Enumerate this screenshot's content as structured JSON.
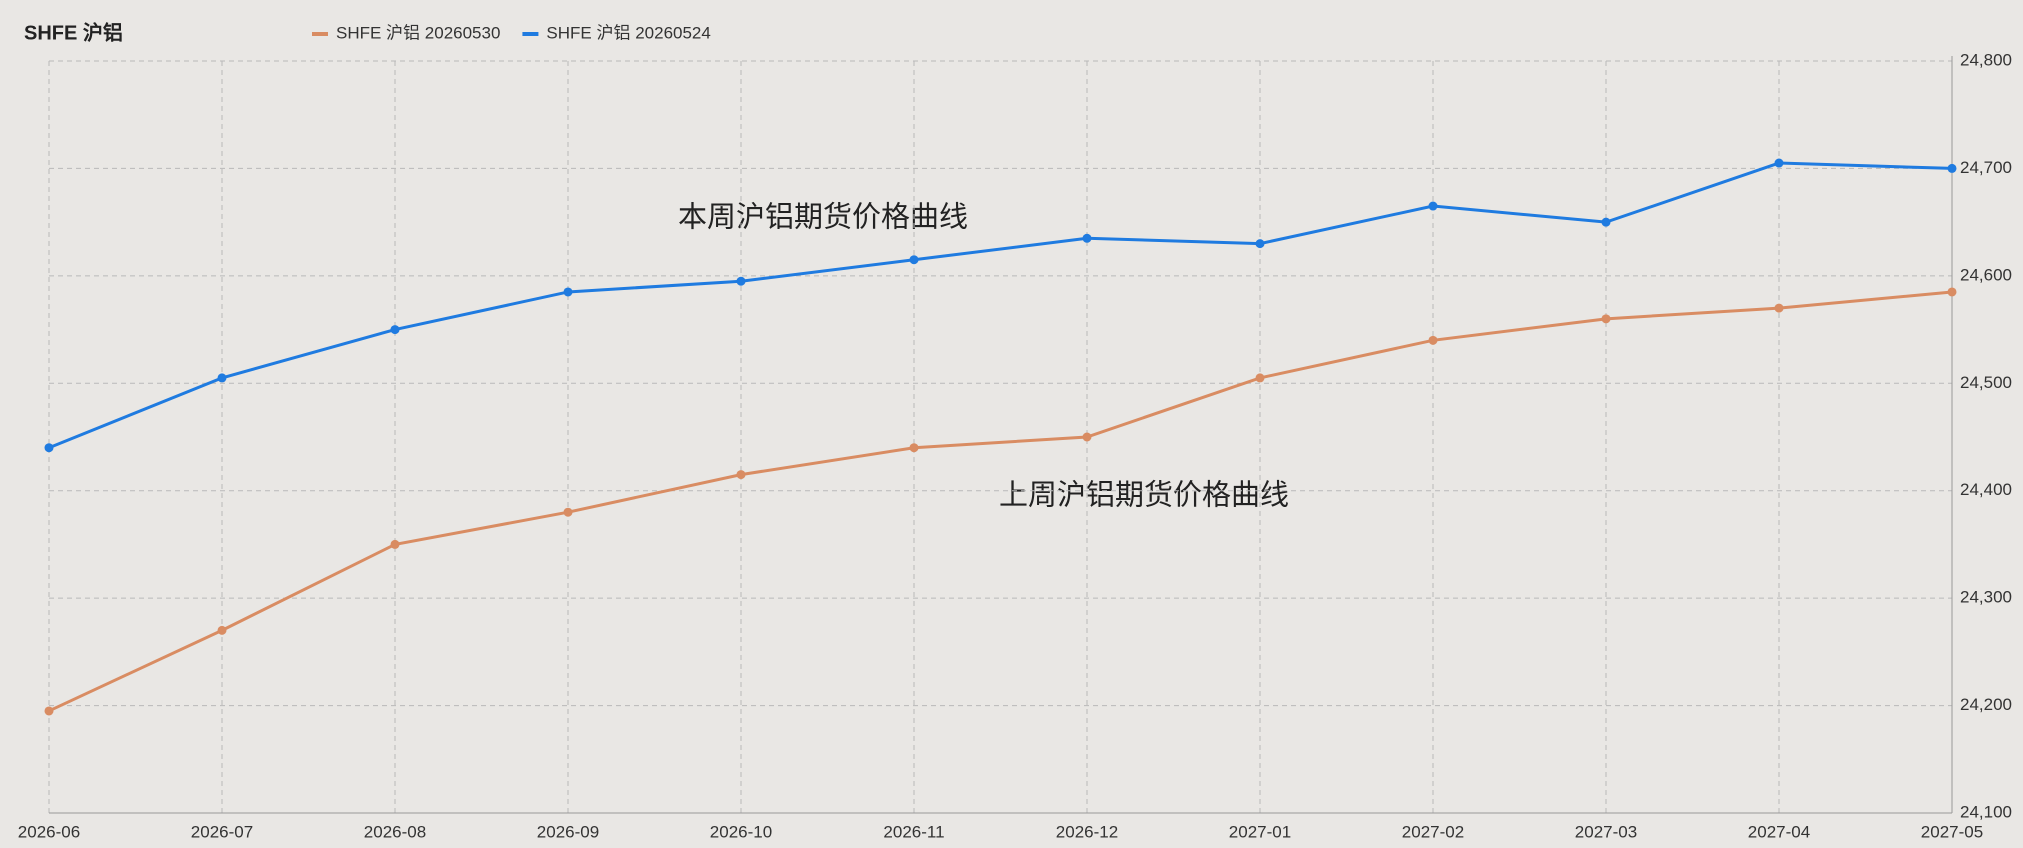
{
  "chart_data": {
    "type": "line",
    "title": "SHFE 沪铝",
    "categories": [
      "2026-06",
      "2026-07",
      "2026-08",
      "2026-09",
      "2026-10",
      "2026-11",
      "2026-12",
      "2027-01",
      "2027-02",
      "2027-03",
      "2027-04",
      "2027-05"
    ],
    "series": [
      {
        "name": "SHFE 沪铝 20260530",
        "color": "#d98c62",
        "values": [
          24195,
          24270,
          24350,
          24380,
          24415,
          24440,
          24450,
          24505,
          24540,
          24560,
          24570,
          24585
        ]
      },
      {
        "name": "SHFE 沪铝 20260524",
        "color": "#1f7be0",
        "values": [
          24440,
          24505,
          24550,
          24585,
          24595,
          24615,
          24635,
          24630,
          24665,
          24650,
          24705,
          24700
        ]
      }
    ],
    "ylim": [
      24100,
      24800
    ],
    "yticks": [
      {
        "value": 24100,
        "label": "24,100"
      },
      {
        "value": 24200,
        "label": "24,200"
      },
      {
        "value": 24300,
        "label": "24,300"
      },
      {
        "value": 24400,
        "label": "24,400"
      },
      {
        "value": 24500,
        "label": "24,500"
      },
      {
        "value": 24600,
        "label": "24,600"
      },
      {
        "value": 24700,
        "label": "24,700"
      },
      {
        "value": 24800,
        "label": "24,800"
      }
    ],
    "grid": true,
    "annotations": [
      "本周沪铝期货价格曲线",
      "上周沪铝期货价格曲线"
    ]
  }
}
